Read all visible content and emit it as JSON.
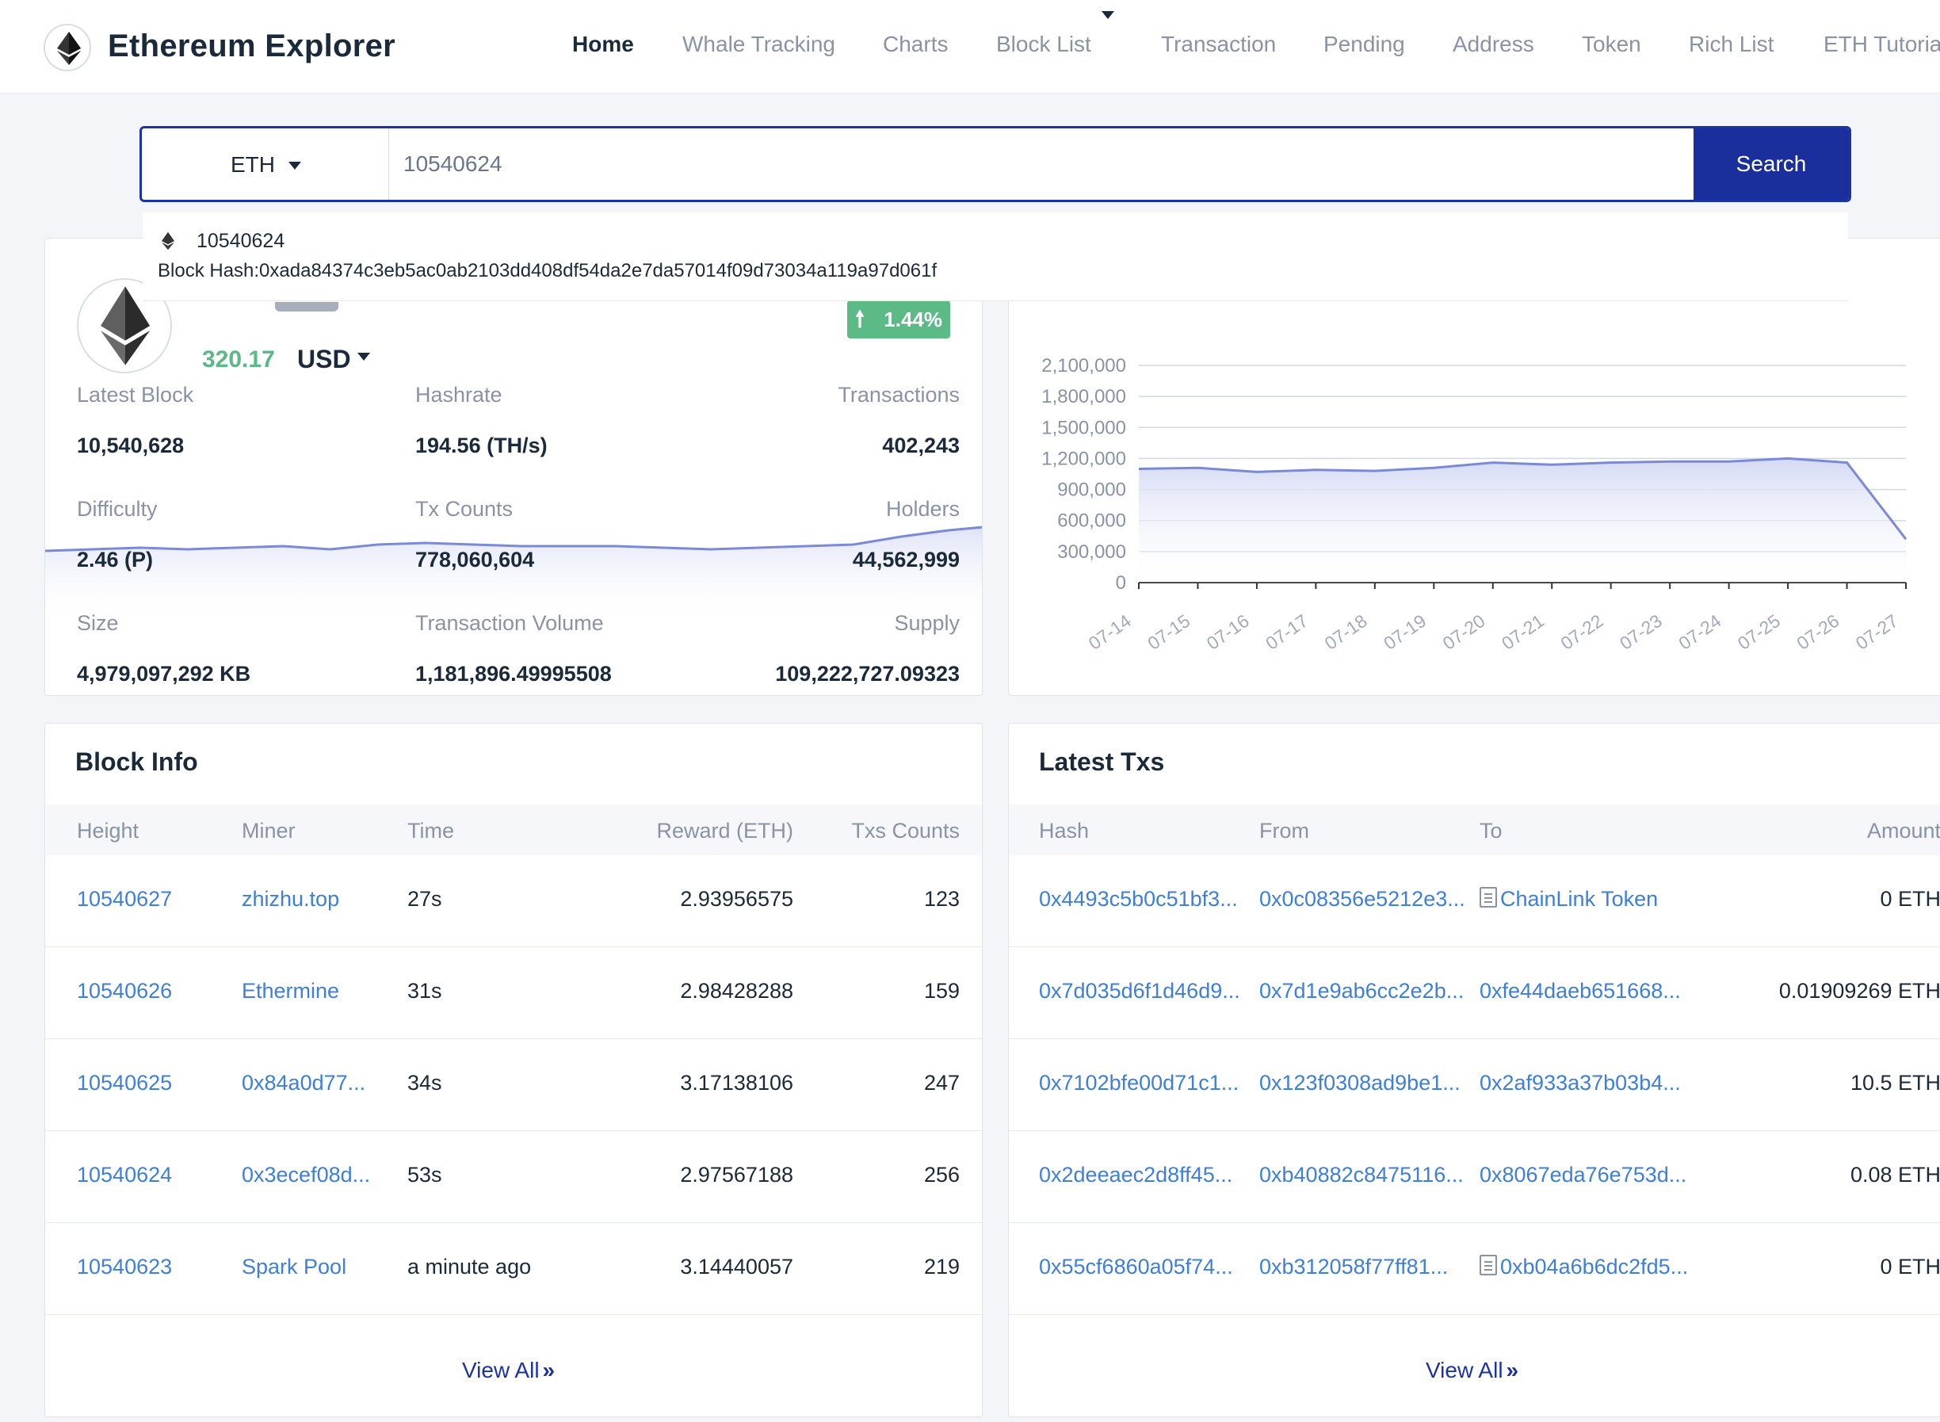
{
  "app": {
    "brand": "Ethereum Explorer"
  },
  "nav": {
    "items": [
      "Home",
      "Whale Tracking",
      "Charts",
      "Block List",
      "Transaction",
      "Pending",
      "Address",
      "Token",
      "Rich List",
      "ETH Tutoria"
    ]
  },
  "search": {
    "currency": "ETH",
    "value": "10540624",
    "button": "Search"
  },
  "suggestion": {
    "number": "10540624",
    "hash": "Block Hash:0xada84374c3eb5ac0ab2103dd408df54da2e7da57014f09d73034a119a97d061f"
  },
  "stats": {
    "price": "320.17",
    "currency": "USD",
    "change": "1.44%",
    "items": [
      {
        "label": "Latest Block",
        "value": "10,540,628"
      },
      {
        "label": "Hashrate",
        "value": "194.56 (TH/s)"
      },
      {
        "label": "Transactions",
        "value": "402,243"
      },
      {
        "label": "Difficulty",
        "value": "2.46 (P)"
      },
      {
        "label": "Tx Counts",
        "value": "778,060,604"
      },
      {
        "label": "Holders",
        "value": "44,562,999"
      },
      {
        "label": "Size",
        "value": "4,979,097,292 KB"
      },
      {
        "label": "Transaction Volume",
        "value": "1,181,896.49995508"
      },
      {
        "label": "Supply",
        "value": "109,222,727.09323"
      }
    ]
  },
  "chart_data": {
    "type": "area",
    "x": [
      "07-14",
      "07-15",
      "07-16",
      "07-17",
      "07-18",
      "07-19",
      "07-20",
      "07-21",
      "07-22",
      "07-23",
      "07-24",
      "07-25",
      "07-26",
      "07-27"
    ],
    "values": [
      1100000,
      1110000,
      1070000,
      1090000,
      1080000,
      1110000,
      1160000,
      1140000,
      1160000,
      1170000,
      1170000,
      1200000,
      1160000,
      420000
    ],
    "yticks": [
      "2,100,000",
      "1,800,000",
      "1,500,000",
      "1,200,000",
      "900,000",
      "600,000",
      "300,000",
      "0"
    ],
    "ylim": [
      0,
      2100000
    ],
    "color": "#7b89d9",
    "grid": true
  },
  "block_info": {
    "title": "Block Info",
    "headers": [
      "Height",
      "Miner",
      "Time",
      "Reward (ETH)",
      "Txs Counts"
    ],
    "rows": [
      [
        "10540627",
        "zhizhu.top",
        "27s",
        "2.93956575",
        "123"
      ],
      [
        "10540626",
        "Ethermine",
        "31s",
        "2.98428288",
        "159"
      ],
      [
        "10540625",
        "0x84a0d77...",
        "34s",
        "3.17138106",
        "247"
      ],
      [
        "10540624",
        "0x3ecef08d...",
        "53s",
        "2.97567188",
        "256"
      ],
      [
        "10540623",
        "Spark Pool",
        "a minute ago",
        "3.14440057",
        "219"
      ]
    ],
    "view_all": "View All"
  },
  "latest_txs": {
    "title": "Latest Txs",
    "headers": [
      "Hash",
      "From",
      "To",
      "Amount"
    ],
    "rows": [
      [
        "0x4493c5b0c51bf3...",
        "0x0c08356e5212e3...",
        "ChainLink Token",
        "0 ETH"
      ],
      [
        "0x7d035d6f1d46d9...",
        "0x7d1e9ab6cc2e2b...",
        "0xfe44daeb651668...",
        "0.01909269 ETH"
      ],
      [
        "0x7102bfe00d71c1...",
        "0x123f0308ad9be1...",
        "0x2af933a37b03b4...",
        "10.5 ETH"
      ],
      [
        "0x2deeaec2d8ff45...",
        "0xb40882c8475116...",
        "0x8067eda76e753d...",
        "0.08 ETH"
      ],
      [
        "0x55cf6860a05f74...",
        "0xb312058f77ff81...",
        "0xb04a6b6dc2fd5...",
        "0 ETH"
      ]
    ],
    "contract_icon_rows": [
      0,
      4
    ],
    "view_all": "View All"
  }
}
